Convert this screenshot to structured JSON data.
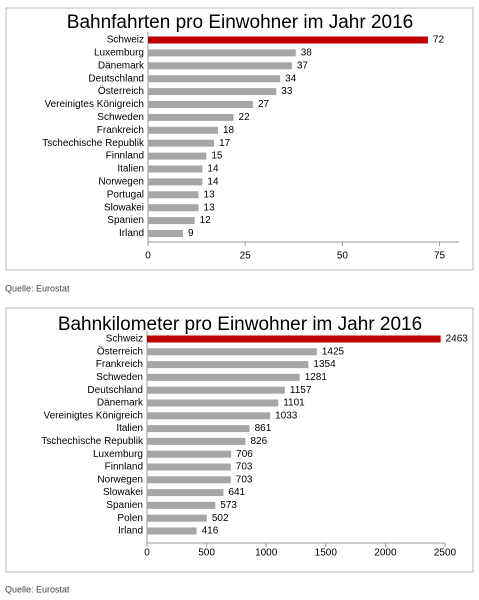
{
  "chart_data": [
    {
      "type": "bar",
      "orientation": "horizontal",
      "title": "Bahnfahrten pro Einwohner im Jahr 2016",
      "categories": [
        "Schweiz",
        "Luxemburg",
        "Dänemark",
        "Deutschland",
        "Österreich",
        "Vereinigtes Königreich",
        "Schweden",
        "Frankreich",
        "Tschechische Republik",
        "Finnland",
        "Italien",
        "Norwegen",
        "Portugal",
        "Slowakei",
        "Spanien",
        "Irland"
      ],
      "values": [
        72,
        38,
        37,
        34,
        33,
        27,
        22,
        18,
        17,
        15,
        14,
        14,
        13,
        13,
        12,
        9
      ],
      "colors": [
        "#c00000",
        "#a6a6a6",
        "#a6a6a6",
        "#a6a6a6",
        "#a6a6a6",
        "#a6a6a6",
        "#a6a6a6",
        "#a6a6a6",
        "#a6a6a6",
        "#a6a6a6",
        "#a6a6a6",
        "#a6a6a6",
        "#a6a6a6",
        "#a6a6a6",
        "#a6a6a6",
        "#a6a6a6"
      ],
      "xlim": [
        0,
        80
      ],
      "xticks": [
        0,
        25,
        50,
        75
      ],
      "source": "Quelle: Eurostat"
    },
    {
      "type": "bar",
      "orientation": "horizontal",
      "title": "Bahnkilometer pro Einwohner im Jahr 2016",
      "categories": [
        "Schweiz",
        "Österreich",
        "Frankreich",
        "Schweden",
        "Deutschland",
        "Dänemark",
        "Vereinigtes Königreich",
        "Italien",
        "Tschechische Republik",
        "Luxemburg",
        "Finnland",
        "Norwegen",
        "Slowakei",
        "Spanien",
        "Polen",
        "Irland"
      ],
      "values": [
        2463,
        1425,
        1354,
        1281,
        1157,
        1101,
        1033,
        861,
        826,
        706,
        703,
        703,
        641,
        573,
        502,
        416
      ],
      "colors": [
        "#c00000",
        "#a6a6a6",
        "#a6a6a6",
        "#a6a6a6",
        "#a6a6a6",
        "#a6a6a6",
        "#a6a6a6",
        "#a6a6a6",
        "#a6a6a6",
        "#a6a6a6",
        "#a6a6a6",
        "#a6a6a6",
        "#a6a6a6",
        "#a6a6a6",
        "#a6a6a6",
        "#a6a6a6"
      ],
      "xlim": [
        0,
        2500
      ],
      "xticks": [
        0,
        500,
        1000,
        1500,
        2000,
        2500
      ],
      "source": "Quelle: Eurostat"
    }
  ]
}
